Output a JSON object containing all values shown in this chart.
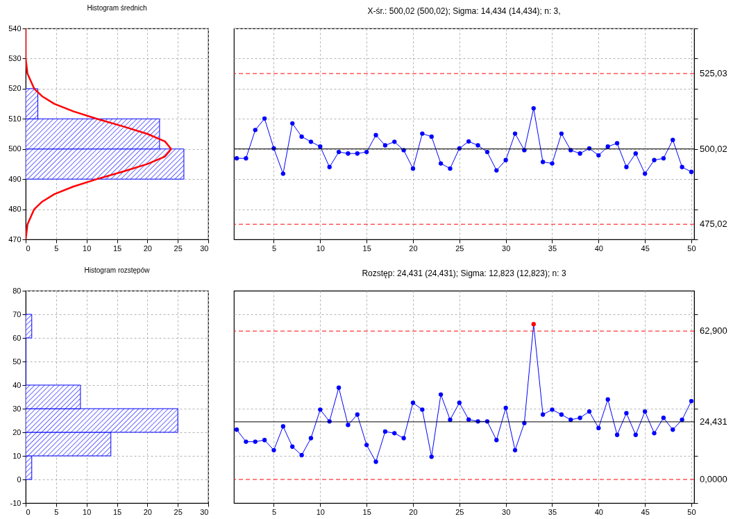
{
  "chart_data": [
    {
      "type": "histogram",
      "orientation": "horizontal",
      "title": "Histogram średnich",
      "bins": [
        490,
        500,
        510,
        520
      ],
      "values": [
        26,
        22,
        2
      ],
      "color": "#0000ff",
      "xlim": [
        0,
        30
      ],
      "xticks": [
        0,
        5,
        10,
        15,
        20,
        25,
        30
      ],
      "ylim": [
        470,
        540
      ],
      "yticks": [
        470,
        480,
        490,
        500,
        510,
        520,
        530,
        540
      ],
      "grid": true,
      "series": [
        {
          "type": "line",
          "color": "#ff0000",
          "x": [
            470,
            475,
            480,
            482.5,
            485,
            487.5,
            490,
            492.5,
            495,
            497.5,
            500,
            502.5,
            505,
            507.5,
            510,
            512.5,
            515,
            517.5,
            520,
            525,
            530,
            535,
            540
          ],
          "values": [
            0,
            0.3,
            1.4,
            2.7,
            4.7,
            7.8,
            11.7,
            16,
            20,
            22.9,
            23.9,
            22.9,
            20,
            16,
            11.7,
            7.8,
            4.7,
            2.7,
            1.4,
            0.3,
            0,
            0,
            0
          ]
        }
      ]
    },
    {
      "type": "line",
      "title": "X-śr.: 500,02 (500,02); Sigma: 14,434 (14,434); n: 3,",
      "x": [
        1,
        2,
        3,
        4,
        5,
        6,
        7,
        8,
        9,
        10,
        11,
        12,
        13,
        14,
        15,
        16,
        17,
        18,
        19,
        20,
        21,
        22,
        23,
        24,
        25,
        26,
        27,
        28,
        29,
        30,
        31,
        32,
        33,
        34,
        35,
        36,
        37,
        38,
        39,
        40,
        41,
        42,
        43,
        44,
        45,
        46,
        47,
        48,
        49,
        50
      ],
      "xlim": [
        0.7,
        50.3
      ],
      "xticks": [
        5,
        10,
        15,
        20,
        25,
        30,
        35,
        40,
        45,
        50
      ],
      "ylim": [
        470,
        540
      ],
      "yticks": [
        470,
        480,
        490,
        500,
        510,
        520,
        530,
        540
      ],
      "tick_labels": "x",
      "grid": true,
      "marker": "circle",
      "series": [
        {
          "color": "#0000ff",
          "values": [
            496.9,
            496.9,
            506.3,
            510.1,
            500.2,
            491.8,
            508.5,
            504.1,
            502.4,
            500.8,
            494.0,
            499.0,
            498.5,
            498.5,
            499.0,
            504.6,
            501.2,
            502.4,
            499.6,
            493.5,
            505.1,
            504.1,
            495.2,
            493.5,
            500.2,
            502.5,
            501.2,
            499.0,
            492.9,
            496.3,
            505.1,
            499.6,
            513.5,
            495.7,
            495.2,
            505.1,
            499.6,
            498.5,
            500.2,
            497.9,
            500.8,
            501.9,
            494.0,
            498.5,
            491.8,
            496.3,
            496.9,
            503.0,
            494.0,
            492.4
          ]
        }
      ],
      "ref_lines": [
        {
          "axis": "y",
          "value": 525.03,
          "label": "525,03",
          "color": "#ff0000",
          "line_style": "dashed"
        },
        {
          "axis": "y",
          "value": 500.02,
          "label": "500,02",
          "color": "#000000",
          "line_style": "solid"
        },
        {
          "axis": "y",
          "value": 475.02,
          "label": "475,02",
          "color": "#ff0000",
          "line_style": "dashed"
        }
      ]
    },
    {
      "type": "histogram",
      "orientation": "horizontal",
      "title": "Histogram rozstępów",
      "bins": [
        0,
        10,
        20,
        30,
        40,
        50,
        60,
        70
      ],
      "values": [
        1,
        14,
        25,
        9,
        0,
        0,
        1
      ],
      "color": "#0000ff",
      "xlim": [
        0,
        30
      ],
      "xticks": [
        0,
        5,
        10,
        15,
        20,
        25,
        30
      ],
      "ylim": [
        -10,
        80
      ],
      "yticks": [
        -10,
        0,
        10,
        20,
        30,
        40,
        50,
        60,
        70,
        80
      ],
      "grid": true
    },
    {
      "type": "line",
      "title": "Rozstęp: 24,431 (24,431); Sigma: 12,823 (12,823); n: 3",
      "x": [
        1,
        2,
        3,
        4,
        5,
        6,
        7,
        8,
        9,
        10,
        11,
        12,
        13,
        14,
        15,
        16,
        17,
        18,
        19,
        20,
        21,
        22,
        23,
        24,
        25,
        26,
        27,
        28,
        29,
        30,
        31,
        32,
        33,
        34,
        35,
        36,
        37,
        38,
        39,
        40,
        41,
        42,
        43,
        44,
        45,
        46,
        47,
        48,
        49,
        50
      ],
      "xlim": [
        0.7,
        50.3
      ],
      "xticks": [
        5,
        10,
        15,
        20,
        25,
        30,
        35,
        40,
        45,
        50
      ],
      "ylim": [
        -10,
        80
      ],
      "yticks": [
        -10,
        0,
        10,
        20,
        30,
        40,
        50,
        60,
        70,
        80
      ],
      "tick_labels": "x",
      "grid": true,
      "marker": "circle",
      "series": [
        {
          "color": "#0000ff",
          "values": [
            21.1,
            16.0,
            16.0,
            16.7,
            12.4,
            22.5,
            13.9,
            10.3,
            17.5,
            29.6,
            24.6,
            38.9,
            23.1,
            27.5,
            14.6,
            7.5,
            20.3,
            19.6,
            17.5,
            32.5,
            29.6,
            9.6,
            36.0,
            25.3,
            32.5,
            25.4,
            24.6,
            24.6,
            16.7,
            30.3,
            12.4,
            23.9,
            65.8,
            27.5,
            29.6,
            27.5,
            25.3,
            26.1,
            28.8,
            21.8,
            33.9,
            18.9,
            28.1,
            18.9,
            28.8,
            19.6,
            26.1,
            21.1,
            25.3,
            33.2
          ],
          "colors": [
            "#0000ff",
            "#0000ff",
            "#0000ff",
            "#0000ff",
            "#0000ff",
            "#0000ff",
            "#0000ff",
            "#0000ff",
            "#0000ff",
            "#0000ff",
            "#0000ff",
            "#0000ff",
            "#0000ff",
            "#0000ff",
            "#0000ff",
            "#0000ff",
            "#0000ff",
            "#0000ff",
            "#0000ff",
            "#0000ff",
            "#0000ff",
            "#0000ff",
            "#0000ff",
            "#0000ff",
            "#0000ff",
            "#0000ff",
            "#0000ff",
            "#0000ff",
            "#0000ff",
            "#0000ff",
            "#0000ff",
            "#0000ff",
            "#ff0000",
            "#0000ff",
            "#0000ff",
            "#0000ff",
            "#0000ff",
            "#0000ff",
            "#0000ff",
            "#0000ff",
            "#0000ff",
            "#0000ff",
            "#0000ff",
            "#0000ff",
            "#0000ff",
            "#0000ff",
            "#0000ff",
            "#0000ff",
            "#0000ff",
            "#0000ff"
          ]
        }
      ],
      "ref_lines": [
        {
          "axis": "y",
          "value": 62.9,
          "label": "62,900",
          "color": "#ff0000",
          "line_style": "dashed"
        },
        {
          "axis": "y",
          "value": 24.431,
          "label": "24,431",
          "color": "#000000",
          "line_style": "solid"
        },
        {
          "axis": "y",
          "value": 0,
          "label": "0,0000",
          "color": "#ff0000",
          "line_style": "dashed"
        }
      ]
    }
  ]
}
